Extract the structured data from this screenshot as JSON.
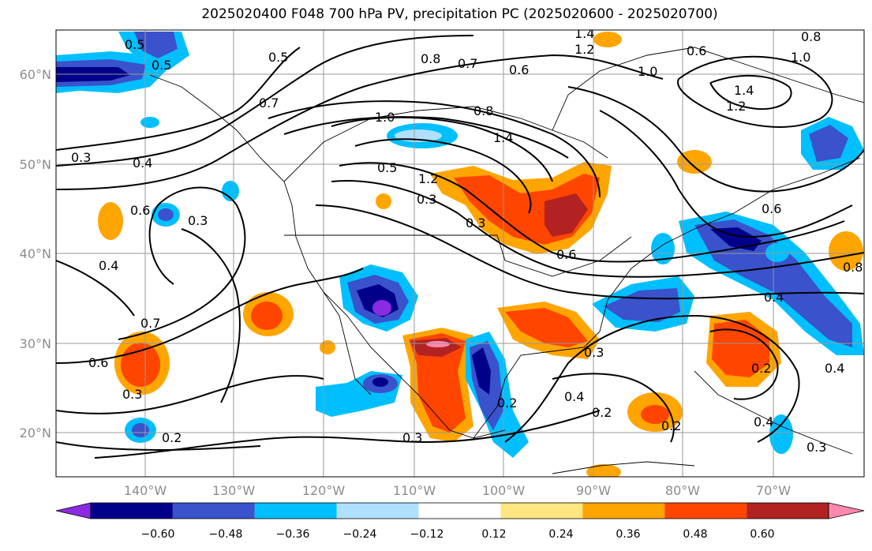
{
  "title": "2025020400 F048 700 hPa PV, precipitation PC (2025020600 - 2025020700)",
  "map": {
    "lat_labels": [
      "60°N",
      "50°N",
      "40°N",
      "30°N",
      "20°N"
    ],
    "lon_labels": [
      "140°W",
      "130°W",
      "120°W",
      "110°W",
      "100°W",
      "90°W",
      "80°W",
      "70°W"
    ],
    "label_color": "#8c8c8c",
    "contour_labels": [
      "0.5",
      "0.5",
      "0.5",
      "0.3",
      "0.4",
      "0.6",
      "0.3",
      "0.7",
      "0.8",
      "0.7",
      "0.6",
      "1.0",
      "1.4",
      "1.2",
      "0.8",
      "1.0",
      "1.4",
      "1.2",
      "1.0",
      "0.8",
      "1.4",
      "0.4",
      "0.7",
      "0.6",
      "0.3",
      "0.2",
      "0.3",
      "0.2",
      "0.6",
      "0.4",
      "0.2",
      "0.4",
      "0.4",
      "0.2",
      "0.3",
      "0.3",
      "0.8",
      "0.2",
      "0.4",
      "0.6",
      "0.3",
      "1.2",
      "0.5",
      "0.3",
      "0.6"
    ]
  },
  "colorbar": {
    "ticks": [
      "−0.60",
      "−0.48",
      "−0.36",
      "−0.24",
      "−0.12",
      "0.12",
      "0.24",
      "0.36",
      "0.48",
      "0.60"
    ],
    "colors": [
      "#8a2be2",
      "#00008b",
      "#3a52cc",
      "#00bfff",
      "#b0e0ff",
      "#ffffff",
      "#ffe680",
      "#ffa500",
      "#ff4500",
      "#b22222",
      "#ff88b0"
    ]
  }
}
